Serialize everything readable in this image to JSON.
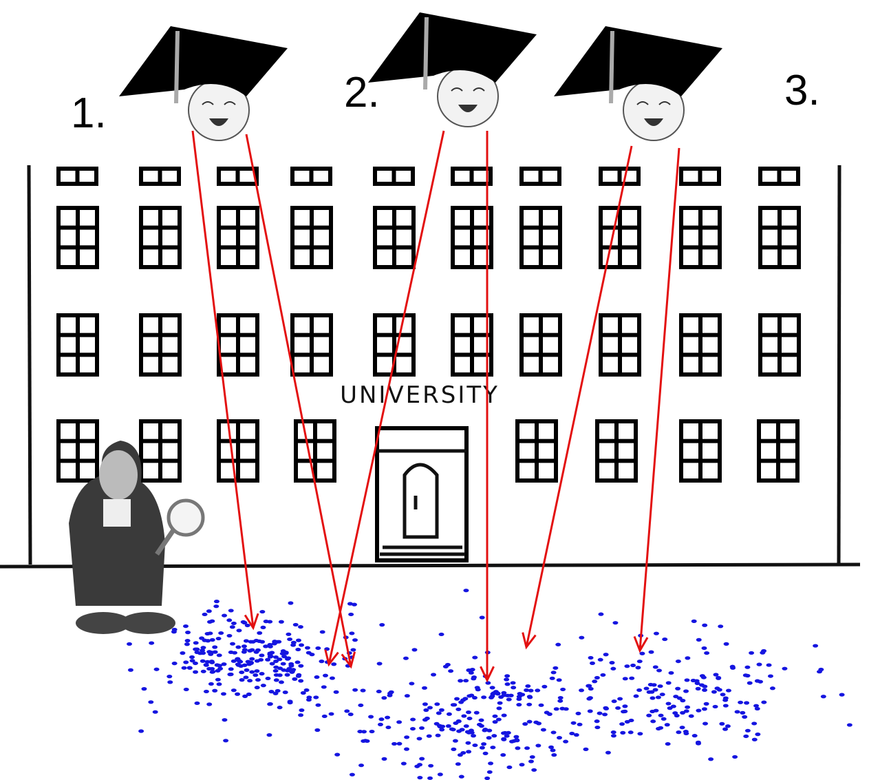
{
  "labels": [
    "1.",
    "2.",
    "3."
  ],
  "sign": "UNIVERSITY"
}
